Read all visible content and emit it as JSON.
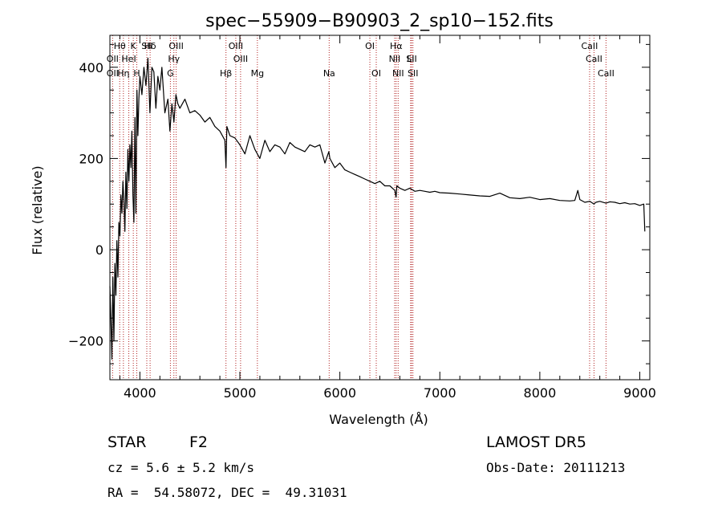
{
  "chart_data": {
    "type": "line",
    "title": "spec−55909−B90903_2_sp10−152.fits",
    "xlabel": "Wavelength (Å)",
    "ylabel": "Flux (relative)",
    "xlim": [
      3700,
      9100
    ],
    "ylim": [
      -285,
      470
    ],
    "xticks": [
      4000,
      5000,
      6000,
      7000,
      8000,
      9000
    ],
    "xtick_labels": [
      "4000",
      "5000",
      "6000",
      "7000",
      "8000",
      "9000"
    ],
    "yticks": [
      -200,
      0,
      200,
      400
    ],
    "ytick_labels": [
      "−200",
      "0",
      "200",
      "400"
    ],
    "grid": false,
    "line_color": "#000000",
    "marker_color": "#b22222",
    "spectrum": {
      "x": [
        3700,
        3710,
        3720,
        3730,
        3740,
        3750,
        3760,
        3770,
        3780,
        3790,
        3800,
        3810,
        3820,
        3830,
        3840,
        3850,
        3860,
        3870,
        3880,
        3890,
        3900,
        3910,
        3920,
        3930,
        3940,
        3950,
        3960,
        3970,
        3980,
        3990,
        4000,
        4020,
        4040,
        4060,
        4080,
        4100,
        4120,
        4140,
        4160,
        4180,
        4200,
        4220,
        4250,
        4280,
        4300,
        4320,
        4340,
        4360,
        4380,
        4400,
        4450,
        4500,
        4550,
        4600,
        4650,
        4700,
        4750,
        4800,
        4850,
        4861,
        4870,
        4900,
        4950,
        5000,
        5050,
        5100,
        5150,
        5200,
        5250,
        5300,
        5350,
        5400,
        5450,
        5500,
        5550,
        5600,
        5650,
        5700,
        5750,
        5800,
        5850,
        5890,
        5900,
        5950,
        6000,
        6050,
        6100,
        6150,
        6200,
        6250,
        6300,
        6350,
        6400,
        6450,
        6500,
        6550,
        6562,
        6570,
        6600,
        6650,
        6700,
        6750,
        6800,
        6850,
        6900,
        6950,
        7000,
        7100,
        7200,
        7300,
        7400,
        7500,
        7600,
        7700,
        7800,
        7900,
        8000,
        8100,
        8200,
        8300,
        8350,
        8380,
        8400,
        8450,
        8500,
        8542,
        8560,
        8600,
        8662,
        8700,
        8750,
        8800,
        8850,
        8900,
        8950,
        9000,
        9040,
        9050
      ],
      "y": [
        -80,
        -150,
        -240,
        -60,
        -200,
        -30,
        -100,
        20,
        -60,
        60,
        30,
        120,
        80,
        150,
        110,
        40,
        170,
        90,
        220,
        150,
        230,
        180,
        260,
        120,
        60,
        290,
        80,
        350,
        250,
        330,
        380,
        340,
        400,
        360,
        420,
        300,
        400,
        390,
        310,
        380,
        350,
        400,
        300,
        330,
        260,
        320,
        280,
        340,
        320,
        310,
        330,
        300,
        305,
        295,
        280,
        290,
        270,
        260,
        240,
        180,
        270,
        250,
        245,
        230,
        210,
        250,
        220,
        200,
        240,
        215,
        230,
        225,
        210,
        235,
        225,
        220,
        215,
        230,
        225,
        230,
        190,
        215,
        200,
        180,
        190,
        175,
        170,
        165,
        160,
        155,
        150,
        145,
        150,
        140,
        140,
        130,
        115,
        140,
        135,
        130,
        135,
        128,
        130,
        128,
        126,
        128,
        125,
        124,
        122,
        120,
        118,
        117,
        124,
        114,
        112,
        115,
        110,
        112,
        108,
        107,
        108,
        130,
        110,
        104,
        106,
        100,
        104,
        106,
        102,
        105,
        104,
        101,
        103,
        100,
        101,
        97,
        100,
        40
      ]
    },
    "lines": [
      {
        "name": "OII",
        "x": 3727
      },
      {
        "name": "Hθ",
        "x": 3798
      },
      {
        "name": "Hη",
        "x": 3835
      },
      {
        "name": "K",
        "x": 3934
      },
      {
        "name": "H",
        "x": 3969
      },
      {
        "name": "HeI",
        "x": 3889
      },
      {
        "name": "Hδ",
        "x": 4102
      },
      {
        "name": "SII",
        "x": 4069
      },
      {
        "name": "OIII",
        "x": 4363
      },
      {
        "name": "Hγ",
        "x": 4340
      },
      {
        "name": "G",
        "x": 4305
      },
      {
        "name": "Hβ",
        "x": 4861
      },
      {
        "name": "OIII",
        "x": 4959
      },
      {
        "name": "OIII",
        "x": 5007
      },
      {
        "name": "Mg",
        "x": 5175
      },
      {
        "name": "Na",
        "x": 5893
      },
      {
        "name": "OI",
        "x": 6300
      },
      {
        "name": "OI",
        "x": 6364
      },
      {
        "name": "Hα",
        "x": 6563
      },
      {
        "name": "NII",
        "x": 6548
      },
      {
        "name": "NII",
        "x": 6583
      },
      {
        "name": "SII",
        "x": 6717
      },
      {
        "name": "Li",
        "x": 6708
      },
      {
        "name": "SII",
        "x": 6731
      },
      {
        "name": "CaII",
        "x": 8498
      },
      {
        "name": "CaII",
        "x": 8542
      },
      {
        "name": "CaII",
        "x": 8662
      }
    ],
    "line_label_rows": [
      [
        "Hθ",
        "K",
        "Hδ",
        "OIII",
        "OIII",
        "OI",
        "Hα",
        "SII",
        "CaII"
      ],
      [
        "OII",
        "HeI",
        "SII",
        "Hγ",
        "OIII",
        "NII",
        "Li",
        "CaII"
      ],
      [
        "OII",
        "Hη",
        "H",
        "G",
        "Hβ",
        "Mg",
        "Na",
        "OI",
        "NII",
        "SII",
        "CaII"
      ]
    ]
  },
  "info": {
    "class_label": "STAR",
    "subclass": "F2",
    "survey": "LAMOST DR5",
    "cz": "cz = 5.6 ± 5.2 km/s",
    "obs_date": "Obs-Date: 20111213",
    "radec": "RA =  54.58072, DEC =  49.31031"
  }
}
